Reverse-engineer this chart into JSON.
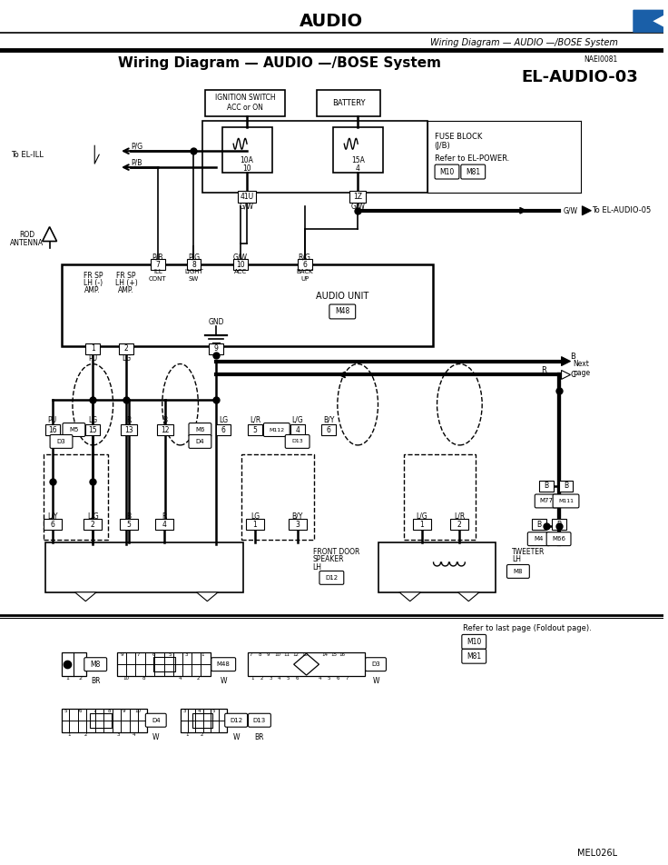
{
  "title": "AUDIO",
  "subtitle": "Wiring Diagram — AUDIO —/BOSE System",
  "main_title": "Wiring Diagram — AUDIO —/BOSE System",
  "diagram_id": "EL-AUDIO-03",
  "doc_id": "NAEI0081",
  "footer": "MEL026L",
  "bg_color": "#ffffff",
  "line_color": "#000000",
  "text_color": "#000000",
  "blue_color": "#1a5fa8"
}
